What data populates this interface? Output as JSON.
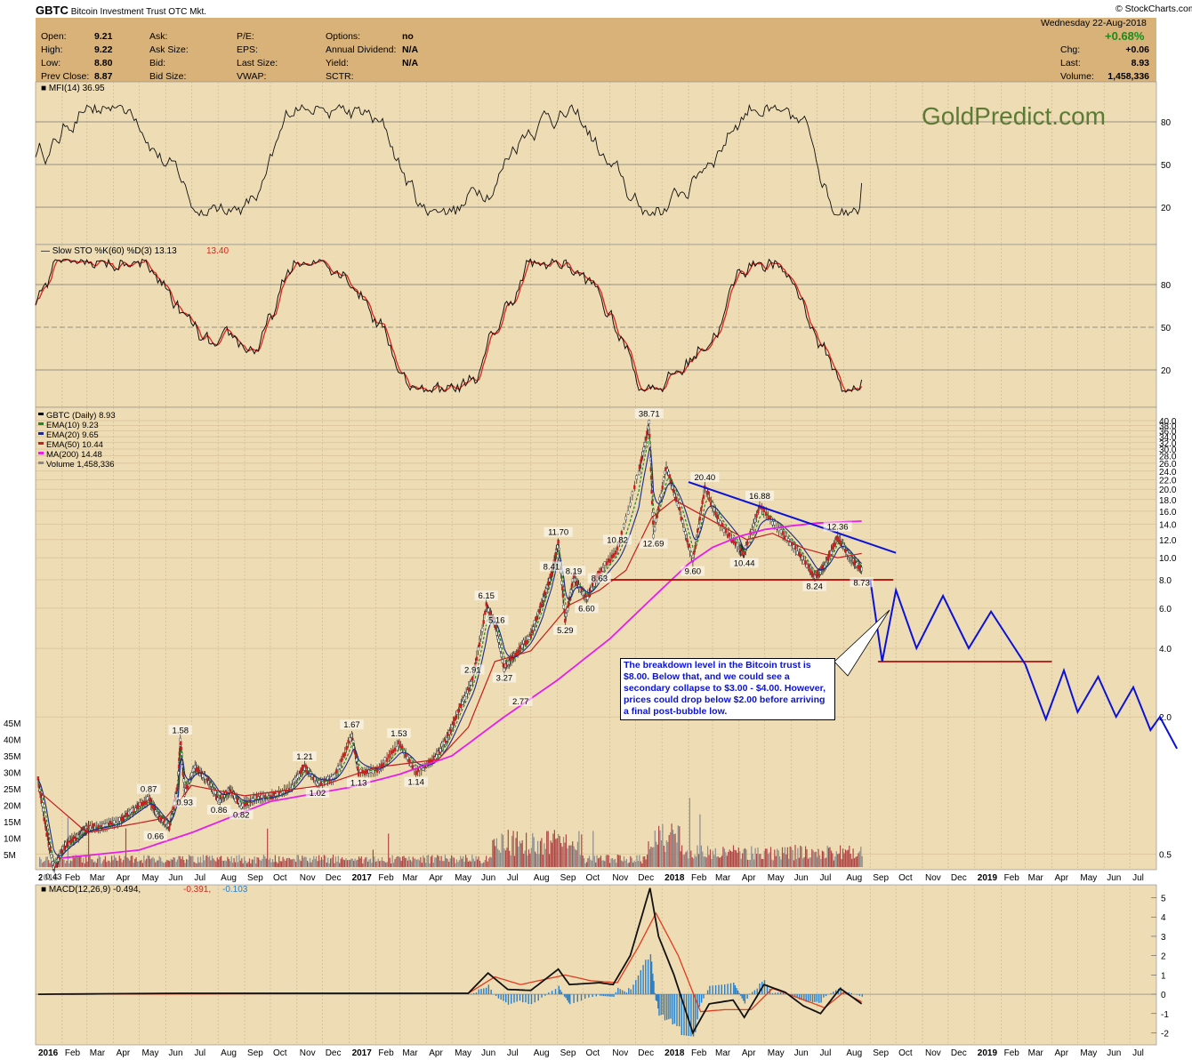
{
  "header": {
    "symbol": "GBTC",
    "name": "Bitcoin Investment Trust",
    "exchange": "OTC Mkt.",
    "credit": "© StockCharts.com",
    "date": "Wednesday  22-Aug-2018",
    "pct_change": "+0.68%",
    "quote_left": [
      {
        "label": "Open:",
        "value": "9.21"
      },
      {
        "label": "High:",
        "value": "9.22"
      },
      {
        "label": "Low:",
        "value": "8.80"
      },
      {
        "label": "Prev Close:",
        "value": "8.87"
      }
    ],
    "quote_mid1": [
      "Ask:",
      "Ask Size:",
      "Bid:",
      "Bid Size:"
    ],
    "quote_mid2": [
      "P/E:",
      "EPS:",
      "Last Size:",
      "VWAP:"
    ],
    "quote_mid3": [
      {
        "label": "Options:",
        "value": "no"
      },
      {
        "label": "Annual Dividend:",
        "value": "N/A"
      },
      {
        "label": "Yield:",
        "value": "N/A"
      },
      {
        "label": "SCTR:",
        "value": ""
      }
    ],
    "quote_right": [
      {
        "label": "Chg:",
        "value": "+0.06"
      },
      {
        "label": "Last:",
        "value": "8.93"
      },
      {
        "label": "Volume:",
        "value": "1,458,336"
      }
    ]
  },
  "watermark": "GoldPredict.com",
  "annotation": "The breakdown level in the Bitcoin trust is $8.00. Below that, and we could see a secondary collapse to $3.00 - $4.00. However, prices could drop below $2.00 before arriving a final post-bubble low.",
  "colors": {
    "panel_bg": "#eedcb4",
    "header_bg": "#d9b27a",
    "price": "#000000",
    "ema10": "#1f8a1f",
    "ema20": "#1b2a8a",
    "ema50": "#c41e1e",
    "ma200": "#e81ee8",
    "volume": "#b04545",
    "support": "#b40000",
    "trendline": "#0b12d8",
    "projection": "#0b12d8",
    "macd_hist": "#2a7fc9",
    "macd_signal": "#e03c1e",
    "mfi_fill": "#4c6e2c"
  },
  "chart_data": [
    {
      "type": "line",
      "panel": "MFI",
      "title": "MFI(14) 36.95",
      "y_ticks": [
        "80",
        "50",
        "20"
      ],
      "ylim": [
        0,
        100
      ],
      "last": 36.95
    },
    {
      "type": "line",
      "panel": "Slow Stochastic",
      "title": "Slow STO %K(60) %D(3) 13.13, 13.40",
      "legend": [
        "Slow STO %K(60) %D(3) 13.13",
        "13.40"
      ],
      "y_ticks": [
        "80",
        "50",
        "20"
      ],
      "ylim": [
        0,
        100
      ],
      "last_k": 13.13,
      "last_d": 13.4
    },
    {
      "type": "line",
      "panel": "Price",
      "scale": "log",
      "title": "GBTC (Daily) 8.93",
      "legend": [
        {
          "name": "GBTC (Daily) 8.93",
          "color": "#000000"
        },
        {
          "name": "EMA(10) 9.23",
          "color": "#1f8a1f"
        },
        {
          "name": "EMA(20) 9.65",
          "color": "#1b2a8a"
        },
        {
          "name": "EMA(50) 10.44",
          "color": "#c41e1e"
        },
        {
          "name": "MA(200) 14.48",
          "color": "#e81ee8"
        },
        {
          "name": "Volume 1,458,336",
          "color": "#888888"
        }
      ],
      "price_ticks": [
        "40.0",
        "38.0",
        "36.0",
        "34.0",
        "32.0",
        "30.0",
        "28.0",
        "26.0",
        "24.0",
        "22.0",
        "20.0",
        "18.0",
        "16.0",
        "14.0",
        "12.0",
        "10.0",
        "8.0",
        "6.0",
        "4.0",
        "2.0",
        "0.5"
      ],
      "volume_ticks": [
        "45M",
        "40M",
        "35M",
        "30M",
        "25M",
        "20M",
        "15M",
        "10M",
        "5M"
      ],
      "x_labels": [
        "2016",
        "Feb",
        "Mar",
        "Apr",
        "May",
        "Jun",
        "Jul",
        "Aug",
        "Sep",
        "Oct",
        "Nov",
        "Dec",
        "2017",
        "Feb",
        "Mar",
        "Apr",
        "May",
        "Jun",
        "Jul",
        "Aug",
        "Sep",
        "Oct",
        "Nov",
        "Dec",
        "2018",
        "Feb",
        "Mar",
        "Apr",
        "May",
        "Jun",
        "Jul",
        "Aug",
        "Sep",
        "Oct",
        "Nov",
        "Dec",
        "2019",
        "Feb",
        "Mar",
        "Apr",
        "May",
        "Jun",
        "Jul"
      ],
      "price_path": [
        [
          "2016-01-04",
          1.05
        ],
        [
          "2016-01-14",
          0.62
        ],
        [
          "2016-01-22",
          0.43
        ],
        [
          "2016-02-05",
          0.55
        ],
        [
          "2016-02-20",
          0.6
        ],
        [
          "2016-03-01",
          0.65
        ],
        [
          "2016-03-20",
          0.66
        ],
        [
          "2016-04-10",
          0.7
        ],
        [
          "2016-04-25",
          0.78
        ],
        [
          "2016-05-12",
          0.87
        ],
        [
          "2016-05-25",
          0.72
        ],
        [
          "2016-06-05",
          0.66
        ],
        [
          "2016-06-15",
          1.0
        ],
        [
          "2016-06-18",
          1.58
        ],
        [
          "2016-06-23",
          0.93
        ],
        [
          "2016-07-05",
          1.2
        ],
        [
          "2016-07-20",
          1.05
        ],
        [
          "2016-08-02",
          0.86
        ],
        [
          "2016-08-15",
          0.95
        ],
        [
          "2016-08-28",
          0.82
        ],
        [
          "2016-09-15",
          0.88
        ],
        [
          "2016-10-05",
          0.9
        ],
        [
          "2016-10-25",
          0.98
        ],
        [
          "2016-11-10",
          1.21
        ],
        [
          "2016-11-25",
          1.02
        ],
        [
          "2016-12-15",
          1.08
        ],
        [
          "2017-01-04",
          1.67
        ],
        [
          "2017-01-12",
          1.13
        ],
        [
          "2017-02-05",
          1.18
        ],
        [
          "2017-02-28",
          1.53
        ],
        [
          "2017-03-20",
          1.14
        ],
        [
          "2017-04-10",
          1.3
        ],
        [
          "2017-04-25",
          1.6
        ],
        [
          "2017-05-10",
          2.2
        ],
        [
          "2017-05-25",
          2.91
        ],
        [
          "2017-06-10",
          6.15
        ],
        [
          "2017-06-20",
          5.16
        ],
        [
          "2017-07-01",
          3.27
        ],
        [
          "2017-07-15",
          3.8
        ],
        [
          "2017-08-01",
          4.6
        ],
        [
          "2017-08-15",
          6.5
        ],
        [
          "2017-08-25",
          8.41
        ],
        [
          "2017-09-02",
          11.7
        ],
        [
          "2017-09-10",
          5.29
        ],
        [
          "2017-09-20",
          8.19
        ],
        [
          "2017-10-05",
          6.6
        ],
        [
          "2017-10-20",
          8.63
        ],
        [
          "2017-11-10",
          10.82
        ],
        [
          "2017-12-05",
          24
        ],
        [
          "2017-12-17",
          38.71
        ],
        [
          "2017-12-22",
          12.69
        ],
        [
          "2018-01-06",
          25
        ],
        [
          "2018-01-20",
          17
        ],
        [
          "2018-02-06",
          9.6
        ],
        [
          "2018-02-20",
          20.4
        ],
        [
          "2018-03-10",
          14
        ],
        [
          "2018-04-01",
          11
        ],
        [
          "2018-04-07",
          10.44
        ],
        [
          "2018-04-25",
          16.88
        ],
        [
          "2018-05-20",
          13
        ],
        [
          "2018-06-10",
          10.5
        ],
        [
          "2018-06-28",
          8.24
        ],
        [
          "2018-07-10",
          9.2
        ],
        [
          "2018-07-25",
          12.36
        ],
        [
          "2018-08-10",
          9.8
        ],
        [
          "2018-08-22",
          8.93
        ]
      ],
      "ema50_path": [
        [
          "2016-01-04",
          0.95
        ],
        [
          "2016-03-01",
          0.62
        ],
        [
          "2016-06-01",
          0.72
        ],
        [
          "2016-07-01",
          1.0
        ],
        [
          "2016-09-01",
          0.9
        ],
        [
          "2016-12-01",
          1.0
        ],
        [
          "2017-02-01",
          1.2
        ],
        [
          "2017-04-15",
          1.3
        ],
        [
          "2017-05-20",
          1.8
        ],
        [
          "2017-06-20",
          3.5
        ],
        [
          "2017-08-01",
          3.9
        ],
        [
          "2017-09-15",
          6.2
        ],
        [
          "2017-10-20",
          7.2
        ],
        [
          "2017-11-20",
          8.8
        ],
        [
          "2017-12-20",
          15
        ],
        [
          "2018-01-15",
          18
        ],
        [
          "2018-03-01",
          14.5
        ],
        [
          "2018-04-10",
          12
        ],
        [
          "2018-05-10",
          12.8
        ],
        [
          "2018-06-15",
          11
        ],
        [
          "2018-07-25",
          10
        ],
        [
          "2018-08-22",
          10.44
        ]
      ],
      "ma200_path": [
        [
          "2016-02-01",
          0.48
        ],
        [
          "2016-05-01",
          0.52
        ],
        [
          "2016-07-01",
          0.62
        ],
        [
          "2016-10-01",
          0.85
        ],
        [
          "2017-01-01",
          0.98
        ],
        [
          "2017-03-01",
          1.12
        ],
        [
          "2017-05-01",
          1.35
        ],
        [
          "2017-07-01",
          2.0
        ],
        [
          "2017-09-01",
          2.9
        ],
        [
          "2017-11-01",
          4.4
        ],
        [
          "2018-01-01",
          7.3
        ],
        [
          "2018-02-01",
          9.4
        ],
        [
          "2018-03-01",
          11.1
        ],
        [
          "2018-04-01",
          12.4
        ],
        [
          "2018-05-01",
          13.3
        ],
        [
          "2018-06-01",
          13.8
        ],
        [
          "2018-07-01",
          14.2
        ],
        [
          "2018-08-22",
          14.48
        ]
      ],
      "annotations": [
        "0.43",
        "0.87",
        "0.66",
        "1.58",
        "0.93",
        "0.86",
        "0.82",
        "1.21",
        "1.02",
        "1.67",
        "1.13",
        "1.53",
        "1.14",
        "2.91",
        "6.15",
        "5.16",
        "3.27",
        "2.77",
        "5.29",
        "8.41",
        "11.70",
        "8.19",
        "6.60",
        "8.63",
        "10.82",
        "38.71",
        "12.69",
        "20.40",
        "9.60",
        "16.88",
        "10.44",
        "8.24",
        "12.36",
        "8.73"
      ],
      "support_level": 8.0,
      "lower_support_level": 3.5,
      "trendline": [
        [
          "2018-02-01",
          21.5
        ],
        [
          "2018-10-01",
          10.5
        ]
      ],
      "projection": [
        [
          "2018-09-01",
          8.0
        ],
        [
          "2018-09-15",
          3.5
        ],
        [
          "2018-10-01",
          7.2
        ],
        [
          "2018-10-25",
          4.0
        ],
        [
          "2018-11-25",
          6.8
        ],
        [
          "2018-12-25",
          4.0
        ],
        [
          "2019-01-20",
          5.8
        ],
        [
          "2019-03-01",
          3.4
        ],
        [
          "2019-03-25",
          1.95
        ],
        [
          "2019-04-15",
          3.2
        ],
        [
          "2019-05-01",
          2.1
        ],
        [
          "2019-05-25",
          3.0
        ],
        [
          "2019-06-15",
          2.0
        ],
        [
          "2019-07-05",
          2.7
        ],
        [
          "2019-07-25",
          1.75
        ],
        [
          "2019-08-05",
          2.0
        ],
        [
          "2019-08-25",
          1.45
        ]
      ]
    },
    {
      "type": "bar",
      "panel": "MACD",
      "title": "MACD(12,26,9) -0.494, -0.391, -0.103",
      "legend": [
        "MACD(12,26,9) -0.494",
        "-0.391",
        "-0.103"
      ],
      "y_ticks": [
        "5",
        "4",
        "3",
        "2",
        "1",
        "0",
        "-1",
        "-2"
      ],
      "ylim": [
        -2.3,
        5.3
      ],
      "last": {
        "macd": -0.494,
        "signal": -0.391,
        "histogram": -0.103
      },
      "macd_path": [
        [
          "2016-01-04",
          0
        ],
        [
          "2016-06-18",
          0.05
        ],
        [
          "2017-01-05",
          0.05
        ],
        [
          "2017-05-20",
          0.05
        ],
        [
          "2017-06-12",
          1.1
        ],
        [
          "2017-07-05",
          0.25
        ],
        [
          "2017-08-01",
          0.2
        ],
        [
          "2017-09-02",
          1.3
        ],
        [
          "2017-09-15",
          0.5
        ],
        [
          "2017-10-20",
          0.6
        ],
        [
          "2017-11-05",
          0.5
        ],
        [
          "2017-11-25",
          2.0
        ],
        [
          "2017-12-18",
          5.5
        ],
        [
          "2017-12-28",
          3.0
        ],
        [
          "2018-01-15",
          1.0
        ],
        [
          "2018-02-06",
          -2.0
        ],
        [
          "2018-02-25",
          -0.5
        ],
        [
          "2018-03-25",
          -0.3
        ],
        [
          "2018-04-07",
          -1.2
        ],
        [
          "2018-04-30",
          0.5
        ],
        [
          "2018-05-25",
          0.1
        ],
        [
          "2018-06-15",
          -0.6
        ],
        [
          "2018-07-05",
          -1.0
        ],
        [
          "2018-07-28",
          0.3
        ],
        [
          "2018-08-22",
          -0.494
        ]
      ],
      "signal_path": [
        [
          "2016-01-04",
          0
        ],
        [
          "2017-05-20",
          0.05
        ],
        [
          "2017-06-20",
          0.9
        ],
        [
          "2017-07-20",
          0.5
        ],
        [
          "2017-09-10",
          1.0
        ],
        [
          "2017-10-10",
          0.7
        ],
        [
          "2017-11-10",
          0.6
        ],
        [
          "2017-12-05",
          2.5
        ],
        [
          "2017-12-25",
          4.2
        ],
        [
          "2018-01-20",
          2.0
        ],
        [
          "2018-02-15",
          -0.9
        ],
        [
          "2018-03-15",
          -0.8
        ],
        [
          "2018-04-15",
          -0.8
        ],
        [
          "2018-05-10",
          0.3
        ],
        [
          "2018-06-10",
          -0.2
        ],
        [
          "2018-07-10",
          -0.7
        ],
        [
          "2018-08-01",
          0.1
        ],
        [
          "2018-08-22",
          -0.391
        ]
      ]
    }
  ]
}
